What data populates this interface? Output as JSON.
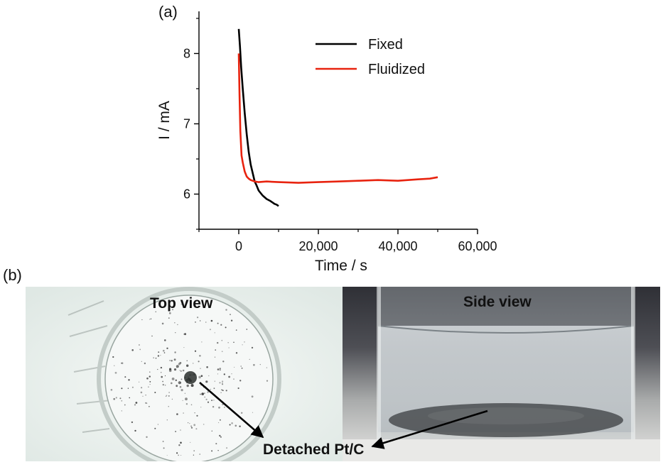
{
  "panel_a_label": "(a)",
  "panel_b_label": "(b)",
  "chart_data": {
    "type": "line",
    "xlabel": "Time / s",
    "ylabel": "I / mA",
    "xlim": [
      -10000,
      60000
    ],
    "ylim": [
      5.5,
      8.6
    ],
    "xticks": [
      0,
      20000,
      40000,
      60000
    ],
    "xtick_labels": [
      "0",
      "20,000",
      "40,000",
      "60,000"
    ],
    "yticks": [
      6,
      7,
      8
    ],
    "ytick_labels": [
      "6",
      "7",
      "8"
    ],
    "legend_position": "top-right",
    "grid": false,
    "series": [
      {
        "name": "Fixed",
        "color": "#000000",
        "x": [
          0,
          300,
          600,
          1000,
          1500,
          2000,
          2500,
          3000,
          3500,
          4000,
          4500,
          5000,
          6000,
          7000,
          8000,
          9000,
          9500,
          10000
        ],
        "y": [
          8.35,
          8.1,
          7.8,
          7.5,
          7.15,
          6.85,
          6.6,
          6.42,
          6.3,
          6.18,
          6.12,
          6.05,
          5.98,
          5.93,
          5.9,
          5.86,
          5.85,
          5.83
        ]
      },
      {
        "name": "Fluidized",
        "color": "#e8230f",
        "x": [
          0,
          200,
          400,
          700,
          1000,
          1500,
          2000,
          2500,
          3000,
          4000,
          5000,
          7000,
          10000,
          15000,
          20000,
          25000,
          30000,
          35000,
          40000,
          45000,
          48000,
          50000
        ],
        "y": [
          8.0,
          7.4,
          6.9,
          6.55,
          6.45,
          6.32,
          6.25,
          6.22,
          6.2,
          6.18,
          6.17,
          6.18,
          6.17,
          6.16,
          6.17,
          6.18,
          6.19,
          6.2,
          6.19,
          6.21,
          6.22,
          6.24
        ]
      }
    ]
  },
  "photos": {
    "top_view_title": "Top view",
    "side_view_title": "Side view",
    "caption": "Detached Pt/C"
  }
}
